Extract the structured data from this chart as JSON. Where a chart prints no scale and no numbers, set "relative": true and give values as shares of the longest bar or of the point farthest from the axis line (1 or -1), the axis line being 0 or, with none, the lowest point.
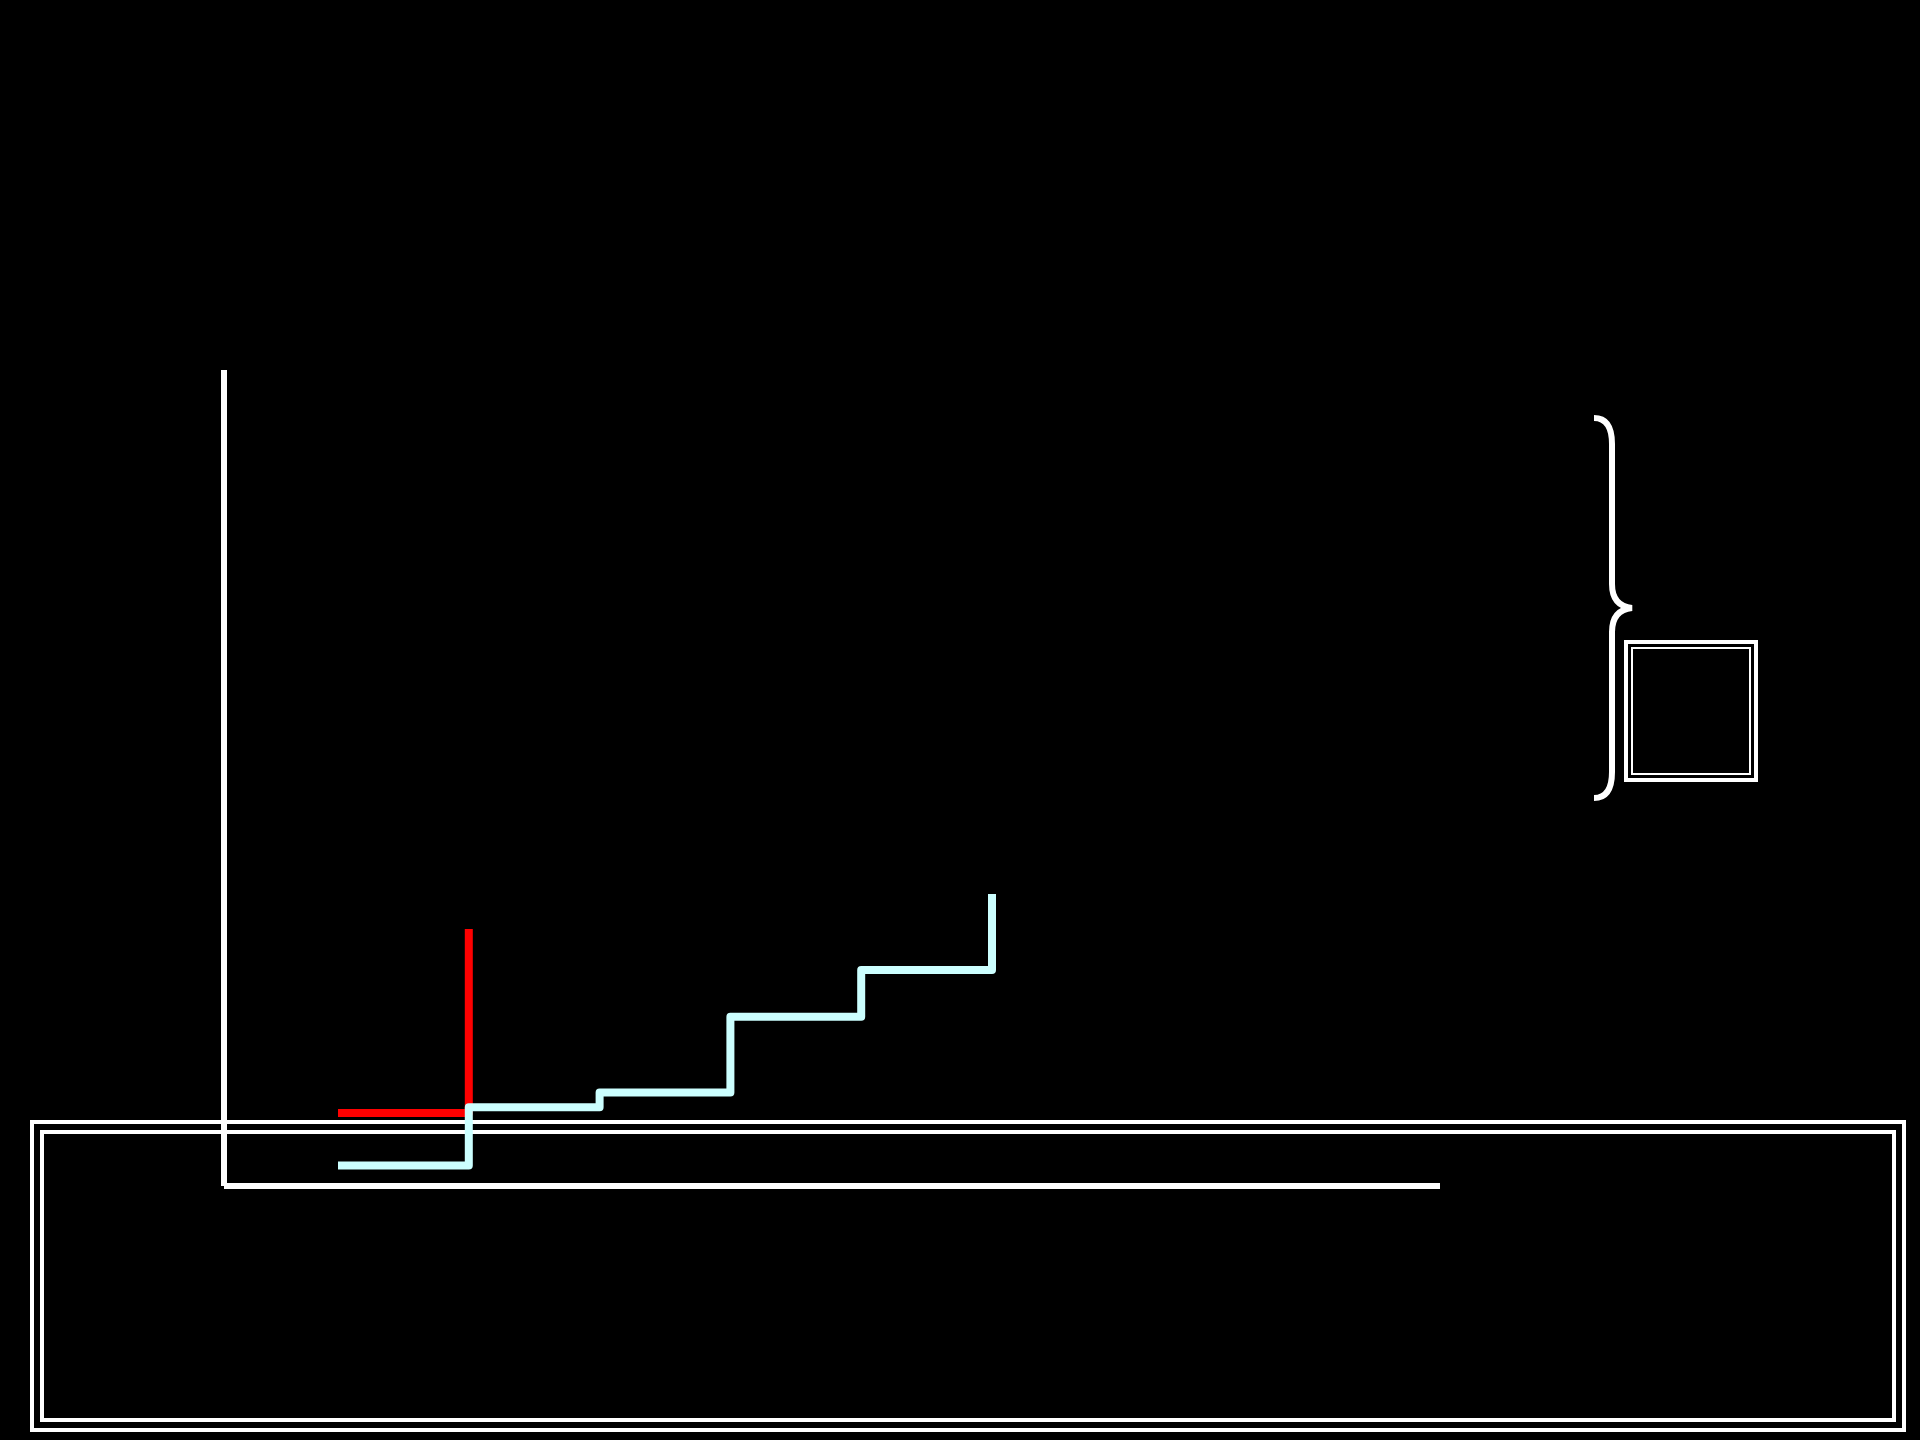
{
  "chart_data": {
    "type": "step",
    "relative": true,
    "categories": [
      null,
      null,
      null,
      null,
      null,
      null
    ],
    "series": [
      {
        "color": "#ff0000",
        "values": [
          0.25,
          0.88,
          null,
          null,
          null,
          null
        ]
      },
      {
        "color": "#ccffff",
        "values": [
          0.07,
          0.27,
          0.32,
          0.58,
          0.74,
          1
        ]
      }
    ]
  }
}
